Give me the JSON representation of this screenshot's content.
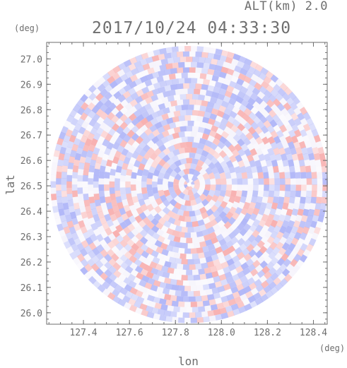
{
  "chart_data": {
    "type": "heatmap",
    "title": "2017/10/24 04:33:30",
    "altitude_label": "ALT(km) 2.0",
    "xlabel": "lon",
    "ylabel": "lat",
    "x_unit": "(deg)",
    "y_unit": "(deg)",
    "xlim": [
      127.24,
      128.46
    ],
    "ylim": [
      25.955,
      27.065
    ],
    "x_ticks": [
      127.4,
      127.6,
      127.8,
      128.0,
      128.2,
      128.4
    ],
    "x_tick_labels": [
      "127.4",
      "127.6",
      "127.8",
      "128.0",
      "128.2",
      "128.4"
    ],
    "y_ticks": [
      26.0,
      26.1,
      26.2,
      26.3,
      26.4,
      26.5,
      26.6,
      26.7,
      26.8,
      26.9,
      27.0
    ],
    "y_tick_labels": [
      "26.0",
      "26.1",
      "26.2",
      "26.3",
      "26.4",
      "26.5",
      "26.6",
      "26.7",
      "26.8",
      "26.9",
      "27.0"
    ],
    "radar_center": {
      "lon": 127.86,
      "lat": 26.505
    },
    "colors": {
      "positive": "#f7a8a8",
      "negative": "#a8aff7",
      "neutral": "#ffffff",
      "axis": "#6e6e6e"
    },
    "grid": false,
    "legend": "none"
  }
}
